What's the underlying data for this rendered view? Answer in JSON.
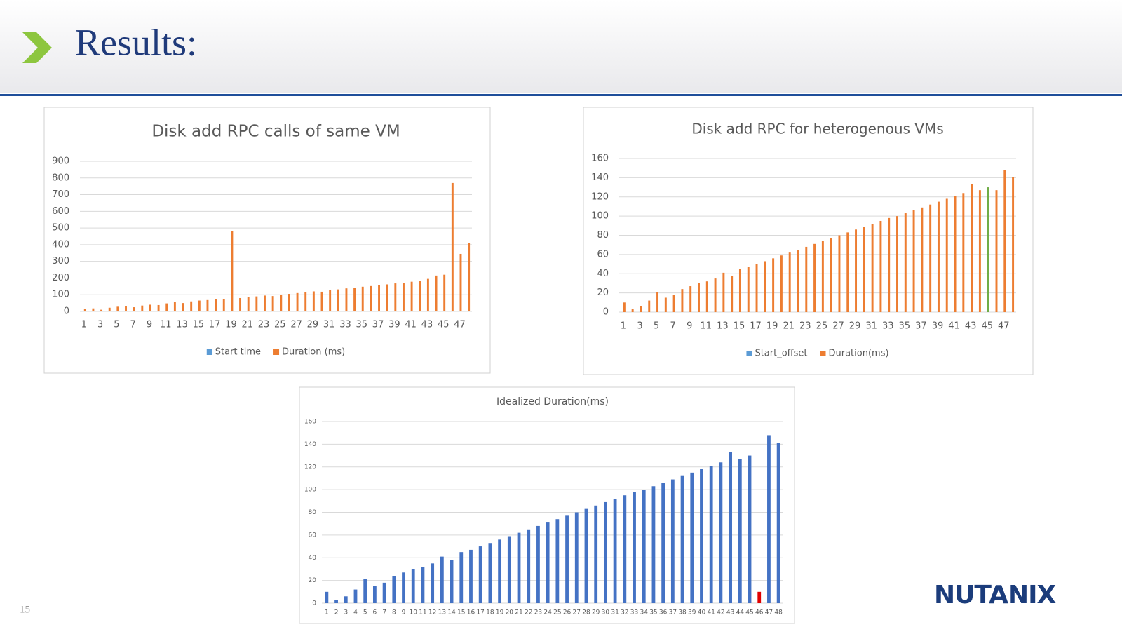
{
  "header": {
    "title": "Results:"
  },
  "footer": {
    "page_number": "15",
    "logo": "NUTANIX"
  },
  "chart_data": [
    {
      "type": "bar",
      "title": "Disk add RPC calls of same VM",
      "categories": [
        1,
        null,
        3,
        null,
        5,
        null,
        7,
        null,
        9,
        null,
        11,
        null,
        13,
        null,
        15,
        null,
        17,
        null,
        19,
        null,
        21,
        null,
        23,
        null,
        25,
        null,
        27,
        null,
        29,
        null,
        31,
        null,
        33,
        null,
        35,
        null,
        37,
        null,
        39,
        null,
        41,
        null,
        43,
        null,
        45,
        null,
        47,
        null
      ],
      "series": [
        {
          "name": "Start time",
          "color": "#5b9bd5",
          "values": [
            0,
            0,
            0,
            0,
            0,
            0,
            0,
            0,
            0,
            0,
            0,
            0,
            0,
            0,
            0,
            0,
            0,
            0,
            0,
            0,
            0,
            0,
            0,
            0,
            0,
            0,
            0,
            0,
            0,
            0,
            0,
            0,
            0,
            0,
            0,
            0,
            0,
            0,
            0,
            0,
            0,
            0,
            0,
            0,
            0,
            0,
            0,
            0
          ]
        },
        {
          "name": "Duration (ms)",
          "color": "#ed7d31",
          "values": [
            15,
            18,
            10,
            22,
            28,
            32,
            25,
            35,
            40,
            38,
            48,
            55,
            50,
            60,
            65,
            68,
            72,
            75,
            480,
            80,
            85,
            90,
            95,
            92,
            100,
            105,
            110,
            115,
            120,
            118,
            128,
            132,
            138,
            142,
            148,
            152,
            158,
            162,
            168,
            172,
            178,
            185,
            195,
            215,
            220,
            770,
            345,
            410
          ]
        }
      ],
      "ylim": [
        0,
        900
      ],
      "yticks": [
        0,
        100,
        200,
        300,
        400,
        500,
        600,
        700,
        800,
        900
      ],
      "grid": true,
      "legend": "bottom"
    },
    {
      "type": "bar",
      "title": "Disk add RPC for heterogenous VMs",
      "categories": [
        1,
        null,
        3,
        null,
        5,
        null,
        7,
        null,
        9,
        null,
        11,
        null,
        13,
        null,
        15,
        null,
        17,
        null,
        19,
        null,
        21,
        null,
        23,
        null,
        25,
        null,
        27,
        null,
        29,
        null,
        31,
        null,
        33,
        null,
        35,
        null,
        37,
        null,
        39,
        null,
        41,
        null,
        43,
        null,
        45,
        null,
        47,
        null
      ],
      "series": [
        {
          "name": "Start_offset",
          "color": "#5b9bd5",
          "values": [
            0,
            0,
            0,
            0,
            0,
            0,
            0,
            0,
            0,
            0,
            0,
            0,
            0,
            0,
            0,
            0,
            0,
            0,
            0,
            0,
            0,
            0,
            0,
            0,
            0,
            0,
            0,
            0,
            0,
            0,
            0,
            0,
            0,
            0,
            0,
            0,
            0,
            0,
            0,
            0,
            0,
            0,
            0,
            0,
            0,
            0,
            0,
            0
          ]
        },
        {
          "name": "Duration(ms)",
          "color": "#ed7d31",
          "highlight": {
            "index": 44,
            "color": "#70ad47"
          },
          "values": [
            10,
            3,
            6,
            12,
            21,
            15,
            18,
            24,
            27,
            30,
            32,
            35,
            41,
            38,
            45,
            47,
            50,
            53,
            56,
            59,
            62,
            65,
            68,
            71,
            74,
            77,
            80,
            83,
            86,
            89,
            92,
            95,
            98,
            100,
            103,
            106,
            109,
            112,
            115,
            118,
            121,
            124,
            133,
            127,
            130,
            127,
            148,
            141
          ]
        }
      ],
      "ylim": [
        0,
        160
      ],
      "yticks": [
        0,
        20,
        40,
        60,
        80,
        100,
        120,
        140,
        160
      ],
      "grid": true,
      "legend": "bottom"
    },
    {
      "type": "bar",
      "title": "Idealized Duration(ms)",
      "categories": [
        1,
        2,
        3,
        4,
        5,
        6,
        7,
        8,
        9,
        10,
        11,
        12,
        13,
        14,
        15,
        16,
        17,
        18,
        19,
        20,
        21,
        22,
        23,
        24,
        25,
        26,
        27,
        28,
        29,
        30,
        31,
        32,
        33,
        34,
        35,
        36,
        37,
        38,
        39,
        40,
        41,
        42,
        43,
        44,
        45,
        46,
        47,
        48
      ],
      "series": [
        {
          "color": "#4472c4",
          "highlight": {
            "index": 45,
            "color": "#e00000"
          },
          "values": [
            10,
            3,
            6,
            12,
            21,
            15,
            18,
            24,
            27,
            30,
            32,
            35,
            41,
            38,
            45,
            47,
            50,
            53,
            56,
            59,
            62,
            65,
            68,
            71,
            74,
            77,
            80,
            83,
            86,
            89,
            92,
            95,
            98,
            100,
            103,
            106,
            109,
            112,
            115,
            118,
            121,
            124,
            133,
            127,
            130,
            10,
            148,
            141
          ]
        }
      ],
      "ylim": [
        0,
        160
      ],
      "yticks": [
        0,
        20,
        40,
        60,
        80,
        100,
        120,
        140,
        160
      ],
      "grid": true
    }
  ]
}
